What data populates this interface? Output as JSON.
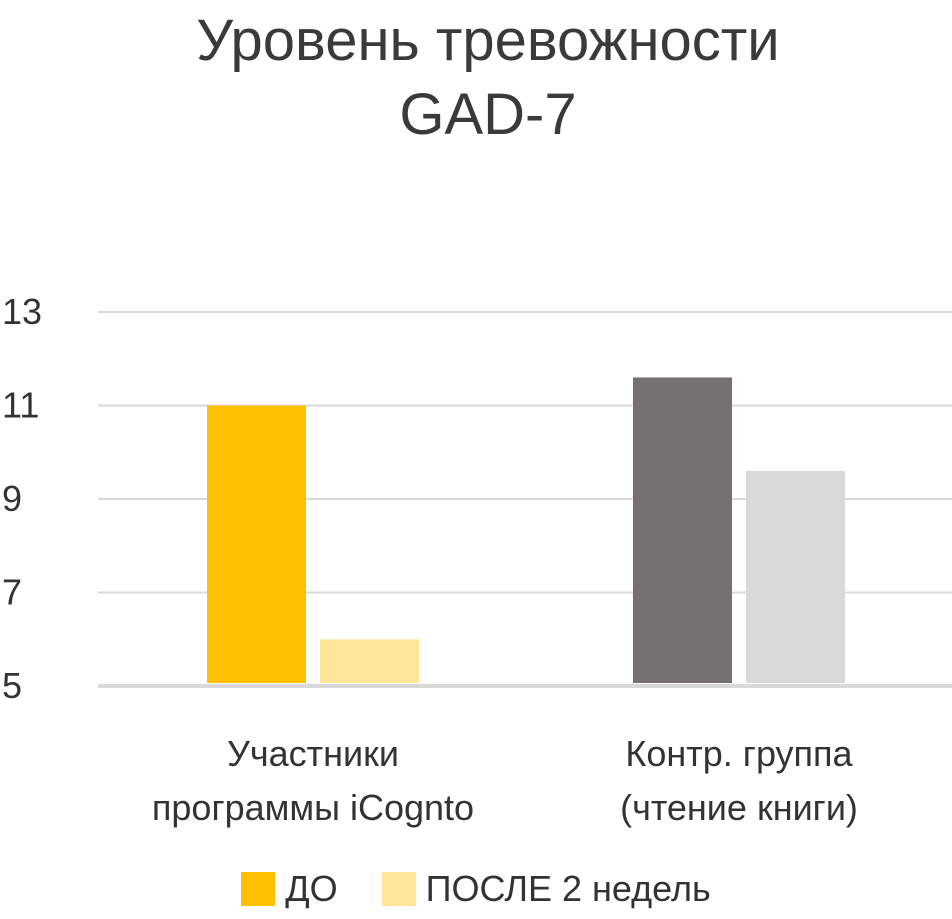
{
  "chart_data": {
    "type": "bar",
    "title": "Уровень тревожности GAD-7",
    "title_lines": [
      "Уровень тревожности",
      "GAD-7"
    ],
    "categories": [
      {
        "lines": [
          "Участники",
          "программы iCognto"
        ]
      },
      {
        "lines": [
          "Контр. группа",
          "(чтение книги)"
        ]
      }
    ],
    "series": [
      {
        "name": "ДО",
        "values": [
          11,
          11.6
        ]
      },
      {
        "name": "ПОСЛЕ 2 недель",
        "values": [
          6,
          9.6
        ]
      }
    ],
    "bar_colors": [
      [
        "#FFC000",
        "#FFE699"
      ],
      [
        "#767171",
        "#D9D9D9"
      ]
    ],
    "legend_colors": [
      "#FFC000",
      "#FFE699"
    ],
    "yticks": [
      5,
      7,
      9,
      11,
      13
    ],
    "ylim": [
      5,
      13
    ],
    "grid": true,
    "legend_position": "bottom"
  }
}
